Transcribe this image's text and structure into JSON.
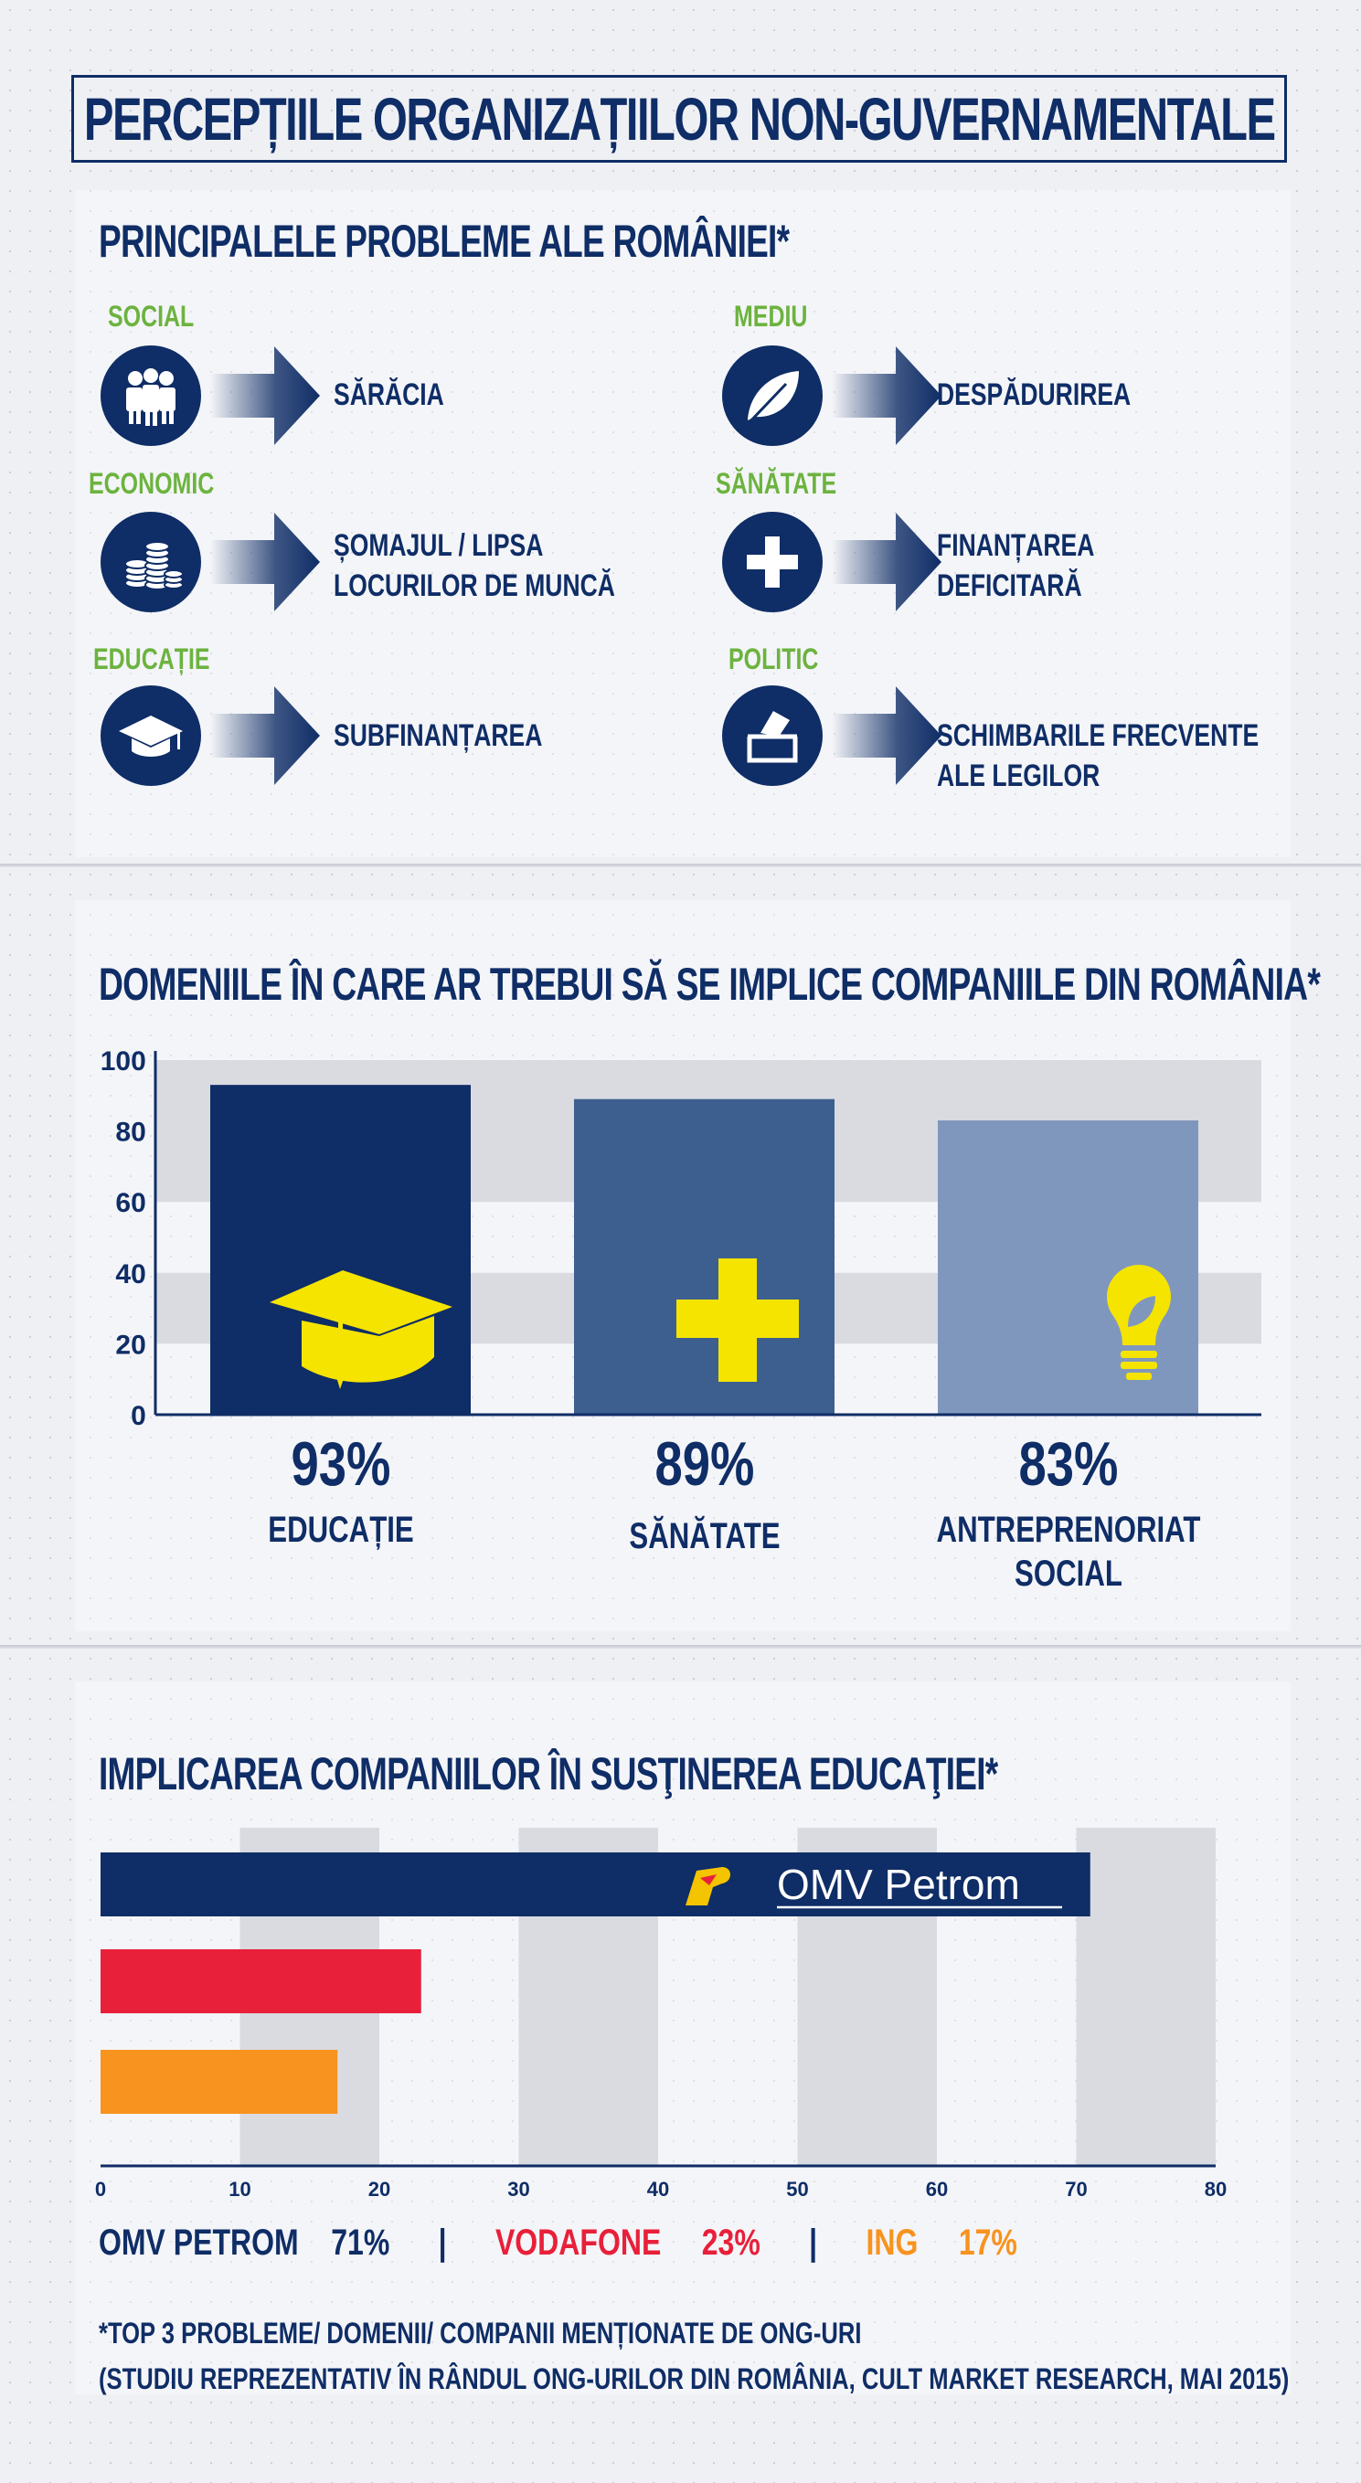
{
  "title": "PERCEPȚIILE ORGANIZAȚIILOR NON-GUVERNAMENTALE",
  "colors": {
    "navy": "#0f2d66",
    "green": "#6cb33f",
    "bar_mid": "#3d5f8f",
    "bar_light": "#8097bd",
    "yellow": "#f5e400",
    "vodafone_red": "#e8203a",
    "ing_orange": "#f7931e"
  },
  "problems": {
    "title": "PRINCIPALELE PROBLEME ALE ROMÂNIEI*",
    "items": [
      {
        "category": "SOCIAL",
        "icon": "people-group-icon",
        "text_line1": "SĂRĂCIA",
        "text_line2": ""
      },
      {
        "category": "MEDIU",
        "icon": "leaf-icon",
        "text_line1": "DESPĂDURIREA",
        "text_line2": ""
      },
      {
        "category": "ECONOMIC",
        "icon": "coin-stacks-icon",
        "text_line1": "ȘOMAJUL / LIPSA",
        "text_line2": "LOCURILOR DE MUNCĂ"
      },
      {
        "category": "SĂNĂTATE",
        "icon": "medical-cross-icon",
        "text_line1": "FINANȚAREA",
        "text_line2": "DEFICITARĂ"
      },
      {
        "category": "EDUCAȚIE",
        "icon": "graduation-cap-icon",
        "text_line1": "SUBFINANȚAREA",
        "text_line2": ""
      },
      {
        "category": "POLITIC",
        "icon": "ballot-box-icon",
        "text_line1": "SCHIMBARILE FRECVENTE",
        "text_line2": "ALE LEGILOR"
      }
    ]
  },
  "domains": {
    "title": "DOMENIILE ÎN CARE AR TREBUI SĂ SE IMPLICE COMPANIILE DIN ROMÂNIA*",
    "items": [
      {
        "pct_label": "93%",
        "category": "EDUCAȚIE",
        "icon": "graduation-cap-icon"
      },
      {
        "pct_label": "89%",
        "category": "SĂNĂTATE",
        "icon": "plus-icon"
      },
      {
        "pct_label": "83%",
        "category": "ANTREPRENORIAT\nSOCIAL",
        "icon": "lightbulb-leaf-icon"
      }
    ]
  },
  "education": {
    "title": "IMPLICAREA COMPANIILOR ÎN SUSŢINEREA EDUCAŢIEI*",
    "logo_text": "OMV Petrom",
    "legend": [
      {
        "name": "OMV PETROM",
        "value": "71%"
      },
      {
        "name": "VODAFONE",
        "value": "23%"
      },
      {
        "name": "ING",
        "value": "17%"
      }
    ],
    "separator": "|"
  },
  "footnote": {
    "line1": "*TOP 3 PROBLEME/ DOMENII/ COMPANII MENȚIONATE DE ONG-URI",
    "line2": "(STUDIU REPREZENTATIV ÎN RÂNDUL ONG-URILOR DIN ROMÂNIA, CULT MARKET RESEARCH, MAI 2015)"
  },
  "chart_data": [
    {
      "type": "bar",
      "categories": [
        "EDUCAȚIE",
        "SĂNĂTATE",
        "ANTREPRENORIAT SOCIAL"
      ],
      "values": [
        93,
        89,
        83
      ],
      "title": "DOMENIILE ÎN CARE AR TREBUI SĂ SE IMPLICE COMPANIILE DIN ROMÂNIA*",
      "ylim": [
        0,
        100
      ],
      "yticks": [
        0,
        20,
        40,
        60,
        80,
        100
      ],
      "grid": "alternating horizontal bands"
    },
    {
      "type": "bar",
      "orientation": "horizontal",
      "categories": [
        "OMV PETROM",
        "VODAFONE",
        "ING"
      ],
      "values": [
        71,
        23,
        17
      ],
      "title": "IMPLICAREA COMPANIILOR ÎN SUSŢINEREA EDUCAŢIEI*",
      "xlim": [
        0,
        80
      ],
      "xticks": [
        0,
        10,
        20,
        30,
        40,
        50,
        60,
        70,
        80
      ],
      "grid": "alternating vertical bands"
    }
  ]
}
